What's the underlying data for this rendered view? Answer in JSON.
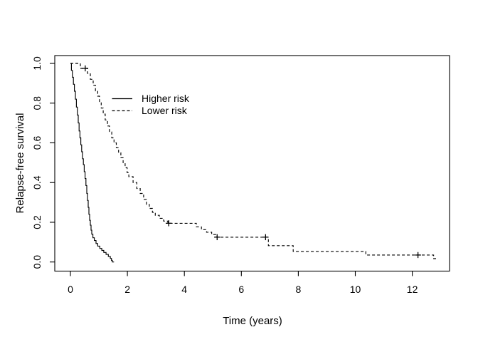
{
  "figure": {
    "background_color": "#ffffff",
    "foreground_color": "#000000"
  },
  "chart_data": {
    "type": "line",
    "subtype": "kaplan_meier_step_function",
    "title": "",
    "xlabel": "Time (years)",
    "ylabel": "Relapse-free survival",
    "xlim": [
      0,
      12.9
    ],
    "ylim": [
      0,
      1
    ],
    "grid": false,
    "x_ticks": [
      0,
      2,
      4,
      6,
      8,
      10,
      12
    ],
    "x_tick_labels": [
      "0",
      "2",
      "4",
      "6",
      "8",
      "10",
      "12"
    ],
    "y_ticks": [
      0.0,
      0.2,
      0.4,
      0.6,
      0.8,
      1.0
    ],
    "y_tick_labels": [
      "0.0",
      "0.2",
      "0.4",
      "0.6",
      "0.8",
      "1.0"
    ],
    "legend": {
      "position": "inset upper-left",
      "boxed": false,
      "entries": [
        {
          "label": "Higher risk",
          "line_style": "solid"
        },
        {
          "label": "Lower risk",
          "line_style": "dashed"
        }
      ]
    },
    "series": [
      {
        "name": "Higher risk",
        "line_style": "solid",
        "color": "#000000",
        "steps": [
          [
            0,
            1.0
          ],
          [
            0.035,
            0.965
          ],
          [
            0.07,
            0.93
          ],
          [
            0.105,
            0.895
          ],
          [
            0.14,
            0.86
          ],
          [
            0.175,
            0.82
          ],
          [
            0.21,
            0.78
          ],
          [
            0.245,
            0.74
          ],
          [
            0.275,
            0.7
          ],
          [
            0.305,
            0.66
          ],
          [
            0.335,
            0.625
          ],
          [
            0.365,
            0.59
          ],
          [
            0.395,
            0.555
          ],
          [
            0.425,
            0.52
          ],
          [
            0.455,
            0.49
          ],
          [
            0.485,
            0.455
          ],
          [
            0.515,
            0.42
          ],
          [
            0.545,
            0.385
          ],
          [
            0.575,
            0.345
          ],
          [
            0.6,
            0.31
          ],
          [
            0.625,
            0.275
          ],
          [
            0.65,
            0.24
          ],
          [
            0.675,
            0.21
          ],
          [
            0.7,
            0.185
          ],
          [
            0.725,
            0.16
          ],
          [
            0.75,
            0.14
          ],
          [
            0.79,
            0.122
          ],
          [
            0.84,
            0.108
          ],
          [
            0.9,
            0.093
          ],
          [
            0.96,
            0.08
          ],
          [
            1.03,
            0.068
          ],
          [
            1.1,
            0.058
          ],
          [
            1.17,
            0.048
          ],
          [
            1.25,
            0.038
          ],
          [
            1.33,
            0.028
          ],
          [
            1.4,
            0.018
          ],
          [
            1.44,
            0.008
          ],
          [
            1.47,
            0.0
          ],
          [
            1.53,
            0.0
          ]
        ],
        "censor_marks": []
      },
      {
        "name": "Lower risk",
        "line_style": "dashed",
        "color": "#000000",
        "steps": [
          [
            0,
            1.0
          ],
          [
            0.35,
            0.975
          ],
          [
            0.6,
            0.95
          ],
          [
            0.7,
            0.92
          ],
          [
            0.8,
            0.89
          ],
          [
            0.88,
            0.862
          ],
          [
            0.96,
            0.835
          ],
          [
            1.02,
            0.805
          ],
          [
            1.08,
            0.775
          ],
          [
            1.15,
            0.745
          ],
          [
            1.22,
            0.715
          ],
          [
            1.3,
            0.685
          ],
          [
            1.37,
            0.655
          ],
          [
            1.45,
            0.625
          ],
          [
            1.53,
            0.6
          ],
          [
            1.61,
            0.575
          ],
          [
            1.69,
            0.55
          ],
          [
            1.77,
            0.525
          ],
          [
            1.85,
            0.5
          ],
          [
            1.92,
            0.475
          ],
          [
            1.99,
            0.45
          ],
          [
            2.05,
            0.43
          ],
          [
            2.2,
            0.4
          ],
          [
            2.33,
            0.37
          ],
          [
            2.45,
            0.345
          ],
          [
            2.57,
            0.315
          ],
          [
            2.67,
            0.29
          ],
          [
            2.77,
            0.27
          ],
          [
            2.88,
            0.25
          ],
          [
            2.98,
            0.235
          ],
          [
            3.12,
            0.22
          ],
          [
            3.27,
            0.206
          ],
          [
            3.42,
            0.195
          ],
          [
            4.42,
            0.177
          ],
          [
            4.6,
            0.163
          ],
          [
            4.78,
            0.15
          ],
          [
            4.96,
            0.138
          ],
          [
            5.12,
            0.125
          ],
          [
            6.95,
            0.082
          ],
          [
            7.82,
            0.053
          ],
          [
            10.37,
            0.035
          ],
          [
            12.75,
            0.017
          ],
          [
            12.9,
            0.017
          ]
        ],
        "censor_marks": [
          [
            0.52,
            0.975
          ],
          [
            3.45,
            0.195
          ],
          [
            5.15,
            0.125
          ],
          [
            6.85,
            0.125
          ],
          [
            12.2,
            0.035
          ]
        ]
      }
    ]
  }
}
